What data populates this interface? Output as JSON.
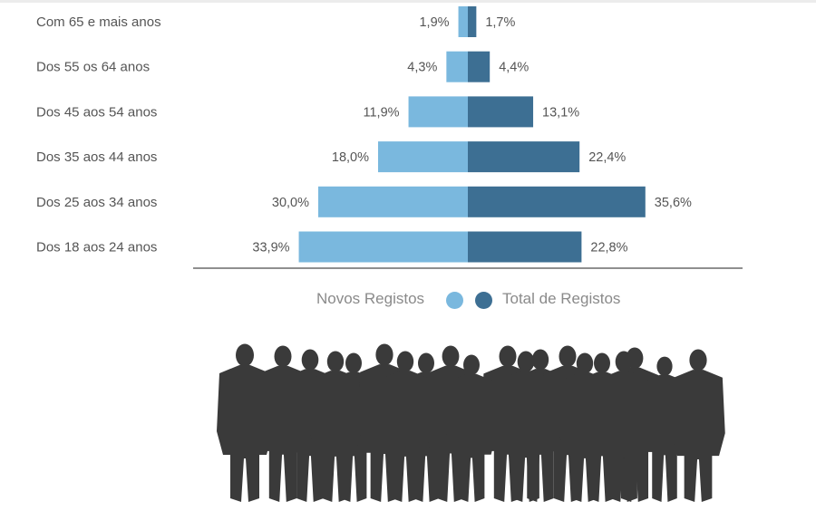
{
  "chart_data": {
    "type": "bar",
    "orientation": "horizontal-diverging",
    "categories": [
      "Com 65 e mais anos",
      "Dos 55 os 64 anos",
      "Dos 45 aos 54 anos",
      "Dos 35 aos 44 anos",
      "Dos 25 aos 34 anos",
      "Dos 18 aos 24 anos"
    ],
    "series": [
      {
        "name": "Novos Registos",
        "side": "left",
        "color": "#7ab8de",
        "values": [
          1.9,
          4.3,
          11.9,
          18.0,
          30.0,
          33.9
        ],
        "labels": [
          "1,9%",
          "4,3%",
          "11,9%",
          "18,0%",
          "30,0%",
          "33,9%"
        ]
      },
      {
        "name": "Total de Registos",
        "side": "right",
        "color": "#3d6f93",
        "values": [
          1.7,
          4.4,
          13.1,
          22.4,
          35.6,
          22.8
        ],
        "labels": [
          "1,7%",
          "4,4%",
          "13,1%",
          "22,4%",
          "35,6%",
          "22,8%"
        ]
      }
    ],
    "legend": "bottom-center",
    "grid": false
  },
  "legend": {
    "left_label": "Novos Registos",
    "right_label": "Total de Registos",
    "left_color": "#7ab8de",
    "right_color": "#3d6f93"
  },
  "decoration": {
    "icon": "crowd-silhouette-icon",
    "color": "#3a3a3a"
  }
}
